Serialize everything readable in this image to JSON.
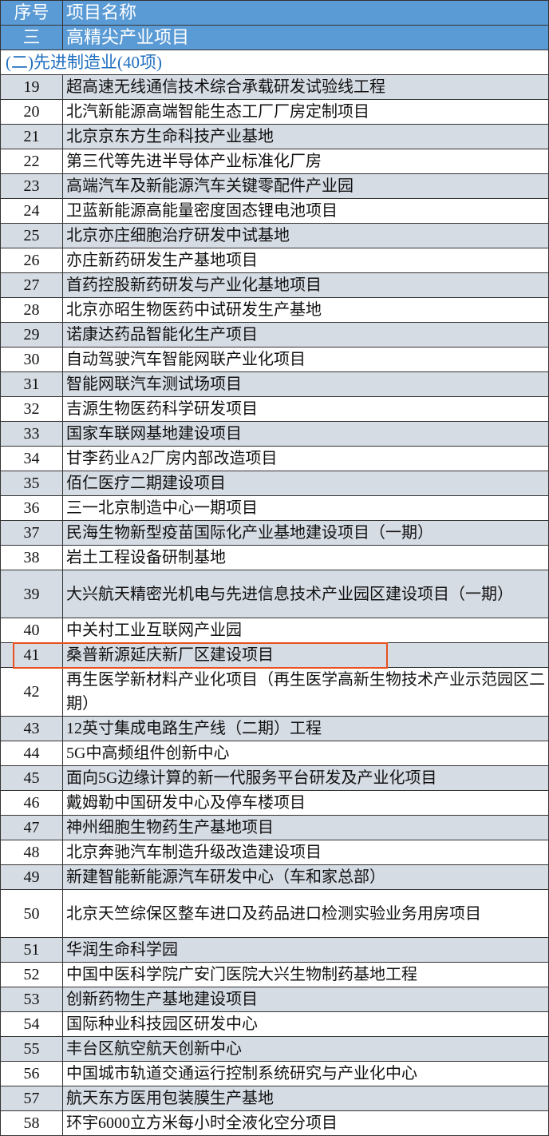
{
  "header": {
    "col_num": "序号",
    "col_name": "项目名称"
  },
  "category": {
    "num": "三",
    "name": "高精尖产业项目"
  },
  "section": {
    "title": "(二)先进制造业(40项)"
  },
  "highlight": {
    "row_num": "41",
    "color": "#e8501e"
  },
  "colors": {
    "header_bg": "#5b9bd5",
    "stripe": "#d6dce4",
    "section_text": "#1f6fbf"
  },
  "rows": [
    {
      "num": "19",
      "name": "超高速无线通信技术综合承载研发试验线工程"
    },
    {
      "num": "20",
      "name": "北汽新能源高端智能生态工厂厂房定制项目"
    },
    {
      "num": "21",
      "name": "北京京东方生命科技产业基地"
    },
    {
      "num": "22",
      "name": "第三代等先进半导体产业标准化厂房"
    },
    {
      "num": "23",
      "name": "高端汽车及新能源汽车关键零配件产业园"
    },
    {
      "num": "24",
      "name": "卫蓝新能源高能量密度固态锂电池项目"
    },
    {
      "num": "25",
      "name": "北京亦庄细胞治疗研发中试基地"
    },
    {
      "num": "26",
      "name": "亦庄新药研发生产基地项目"
    },
    {
      "num": "27",
      "name": "首药控股新药研发与产业化基地项目"
    },
    {
      "num": "28",
      "name": "北京亦昭生物医药中试研发生产基地"
    },
    {
      "num": "29",
      "name": "诺康达药品智能化生产项目"
    },
    {
      "num": "30",
      "name": "自动驾驶汽车智能网联产业化项目"
    },
    {
      "num": "31",
      "name": "智能网联汽车测试场项目"
    },
    {
      "num": "32",
      "name": "吉源生物医药科学研发项目"
    },
    {
      "num": "33",
      "name": "国家车联网基地建设项目"
    },
    {
      "num": "34",
      "name": "甘李药业A2厂房内部改造项目"
    },
    {
      "num": "35",
      "name": "佰仁医疗二期建设项目"
    },
    {
      "num": "36",
      "name": "三一北京制造中心一期项目"
    },
    {
      "num": "37",
      "name": "民海生物新型疫苗国际化产业基地建设项目（一期）"
    },
    {
      "num": "38",
      "name": "岩土工程设备研制基地"
    },
    {
      "num": "39",
      "name": "大兴航天精密光机电与先进信息技术产业园区建设项目（一期）"
    },
    {
      "num": "40",
      "name": "中关村工业互联网产业园"
    },
    {
      "num": "41",
      "name": "桑普新源延庆新厂区建设项目"
    },
    {
      "num": "42",
      "name": "再生医学新材料产业化项目（再生医学高新生物技术产业示范园区二期）"
    },
    {
      "num": "43",
      "name": "12英寸集成电路生产线（二期）工程"
    },
    {
      "num": "44",
      "name": "5G中高频组件创新中心"
    },
    {
      "num": "45",
      "name": "面向5G边缘计算的新一代服务平台研发及产业化项目"
    },
    {
      "num": "46",
      "name": "戴姆勒中国研发中心及停车楼项目"
    },
    {
      "num": "47",
      "name": "神州细胞生物药生产基地项目"
    },
    {
      "num": "48",
      "name": "北京奔驰汽车制造升级改造建设项目"
    },
    {
      "num": "49",
      "name": "新建智能新能源汽车研发中心（车和家总部）"
    },
    {
      "num": "50",
      "name": "北京天竺综保区整车进口及药品进口检测实验业务用房项目"
    },
    {
      "num": "51",
      "name": "华润生命科学园"
    },
    {
      "num": "52",
      "name": "中国中医科学院广安门医院大兴生物制药基地工程"
    },
    {
      "num": "53",
      "name": "创新药物生产基地建设项目"
    },
    {
      "num": "54",
      "name": "国际种业科技园区研发中心"
    },
    {
      "num": "55",
      "name": "丰台区航空航天创新中心"
    },
    {
      "num": "56",
      "name": "中国城市轨道交通运行控制系统研究与产业化中心"
    },
    {
      "num": "57",
      "name": "航天东方医用包装膜生产基地"
    },
    {
      "num": "58",
      "name": "环宇6000立方米每小时全液化空分项目"
    }
  ]
}
